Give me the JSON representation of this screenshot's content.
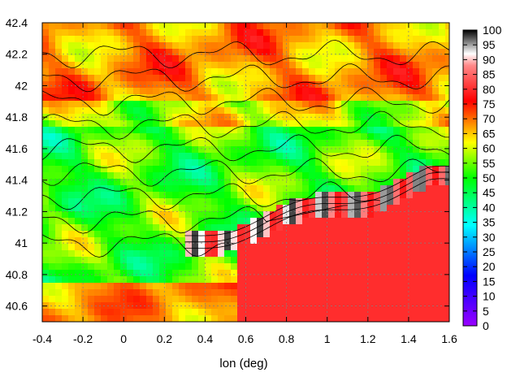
{
  "chart_data": {
    "type": "heatmap",
    "title": "",
    "xlabel": "lon (deg)",
    "ylabel": "",
    "xlim": [
      -0.4,
      1.6
    ],
    "ylim": [
      40.5,
      42.4
    ],
    "xticks": [
      "-0.4",
      "-0.2",
      "0",
      "0.2",
      "0.4",
      "0.6",
      "0.8",
      "1",
      "1.2",
      "1.4",
      "1.6"
    ],
    "xtick_values": [
      -0.4,
      -0.2,
      0,
      0.2,
      0.4,
      0.6,
      0.8,
      1.0,
      1.2,
      1.4,
      1.6
    ],
    "yticks": [
      "40.6",
      "40.8",
      "41",
      "41.2",
      "41.4",
      "41.6",
      "41.8",
      "42",
      "42.2",
      "42.4"
    ],
    "ytick_values": [
      40.6,
      40.8,
      41.0,
      41.2,
      41.4,
      41.6,
      41.8,
      42.0,
      42.2,
      42.4
    ],
    "colorbar": {
      "range": [
        0,
        100
      ],
      "ticks": [
        "0",
        "5",
        "10",
        "15",
        "20",
        "25",
        "30",
        "35",
        "40",
        "45",
        "50",
        "55",
        "60",
        "65",
        "70",
        "75",
        "80",
        "85",
        "90",
        "95",
        "100"
      ],
      "tick_values": [
        0,
        5,
        10,
        15,
        20,
        25,
        30,
        35,
        40,
        45,
        50,
        55,
        60,
        65,
        70,
        75,
        80,
        85,
        90,
        95,
        100
      ],
      "colors": [
        "#9900ff",
        "#0000ff",
        "#00ffff",
        "#00ff00",
        "#ffff00",
        "#ff0000",
        "#ffffff",
        "#000000"
      ]
    },
    "grid": true,
    "contours": true,
    "regions": {
      "sea_value": 80,
      "land_mid_value": 55,
      "north_value": 70
    }
  }
}
